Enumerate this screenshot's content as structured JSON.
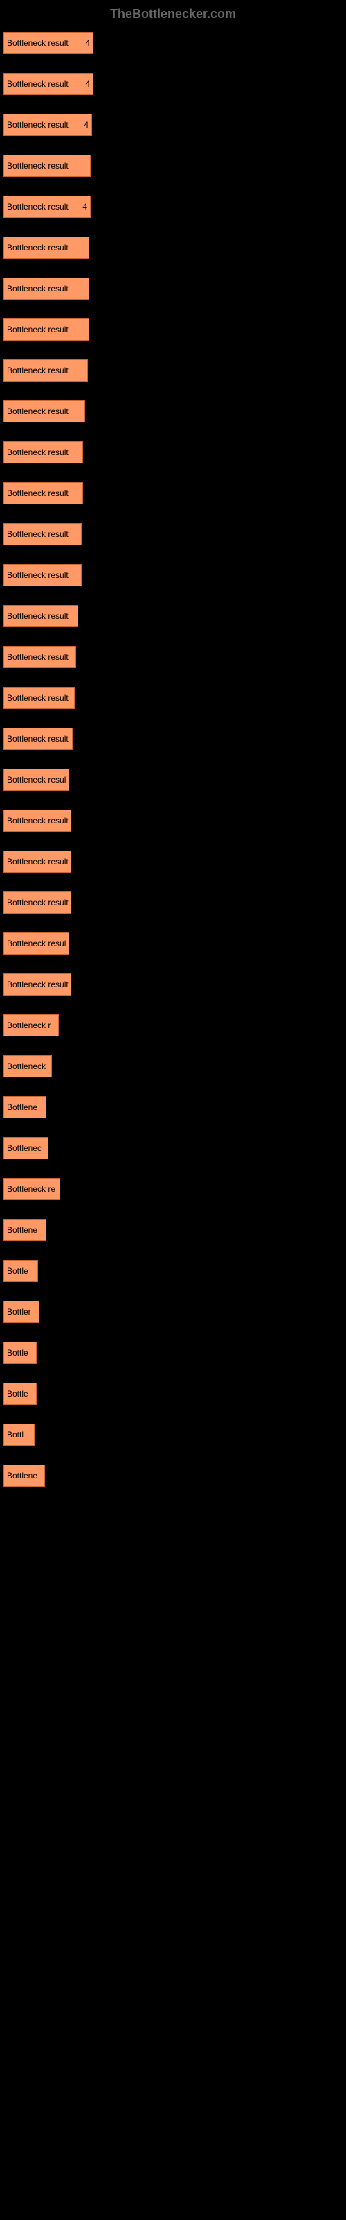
{
  "watermark": "TheBottlenecker.com",
  "chart": {
    "type": "bar",
    "background_color": "#000000",
    "bar_color": "#ff9966",
    "bar_border_color": "#cc6633",
    "text_color": "#000000",
    "watermark_color": "#666666",
    "label_fontsize": 12,
    "max_width": 130,
    "bars": [
      {
        "label": "Bottleneck result",
        "value": "4",
        "width": 130
      },
      {
        "label": "Bottleneck result",
        "value": "4",
        "width": 130
      },
      {
        "label": "Bottleneck result",
        "value": "4",
        "width": 128
      },
      {
        "label": "Bottleneck result",
        "value": "",
        "width": 126
      },
      {
        "label": "Bottleneck result",
        "value": "4",
        "width": 126
      },
      {
        "label": "Bottleneck result",
        "value": "",
        "width": 124
      },
      {
        "label": "Bottleneck result",
        "value": "",
        "width": 124
      },
      {
        "label": "Bottleneck result",
        "value": "",
        "width": 124
      },
      {
        "label": "Bottleneck result",
        "value": "",
        "width": 122
      },
      {
        "label": "Bottleneck result",
        "value": "",
        "width": 118
      },
      {
        "label": "Bottleneck result",
        "value": "",
        "width": 115
      },
      {
        "label": "Bottleneck result",
        "value": "",
        "width": 115
      },
      {
        "label": "Bottleneck result",
        "value": "",
        "width": 113
      },
      {
        "label": "Bottleneck result",
        "value": "",
        "width": 113
      },
      {
        "label": "Bottleneck result",
        "value": "",
        "width": 108
      },
      {
        "label": "Bottleneck result",
        "value": "",
        "width": 105
      },
      {
        "label": "Bottleneck result",
        "value": "",
        "width": 103
      },
      {
        "label": "Bottleneck result",
        "value": "",
        "width": 100
      },
      {
        "label": "Bottleneck resul",
        "value": "",
        "width": 95
      },
      {
        "label": "Bottleneck result",
        "value": "",
        "width": 98
      },
      {
        "label": "Bottleneck result",
        "value": "",
        "width": 98
      },
      {
        "label": "Bottleneck result",
        "value": "",
        "width": 98
      },
      {
        "label": "Bottleneck resul",
        "value": "",
        "width": 95
      },
      {
        "label": "Bottleneck result",
        "value": "",
        "width": 98
      },
      {
        "label": "Bottleneck r",
        "value": "",
        "width": 80
      },
      {
        "label": "Bottleneck",
        "value": "",
        "width": 70
      },
      {
        "label": "Bottlene",
        "value": "",
        "width": 62
      },
      {
        "label": "Bottlenec",
        "value": "",
        "width": 65
      },
      {
        "label": "Bottleneck re",
        "value": "",
        "width": 82
      },
      {
        "label": "Bottlene",
        "value": "",
        "width": 62
      },
      {
        "label": "Bottle",
        "value": "",
        "width": 50
      },
      {
        "label": "Bottler",
        "value": "",
        "width": 52
      },
      {
        "label": "Bottle",
        "value": "",
        "width": 48
      },
      {
        "label": "Bottle",
        "value": "",
        "width": 48
      },
      {
        "label": "Bottl",
        "value": "",
        "width": 45
      },
      {
        "label": "Bottlene",
        "value": "",
        "width": 60
      }
    ]
  }
}
